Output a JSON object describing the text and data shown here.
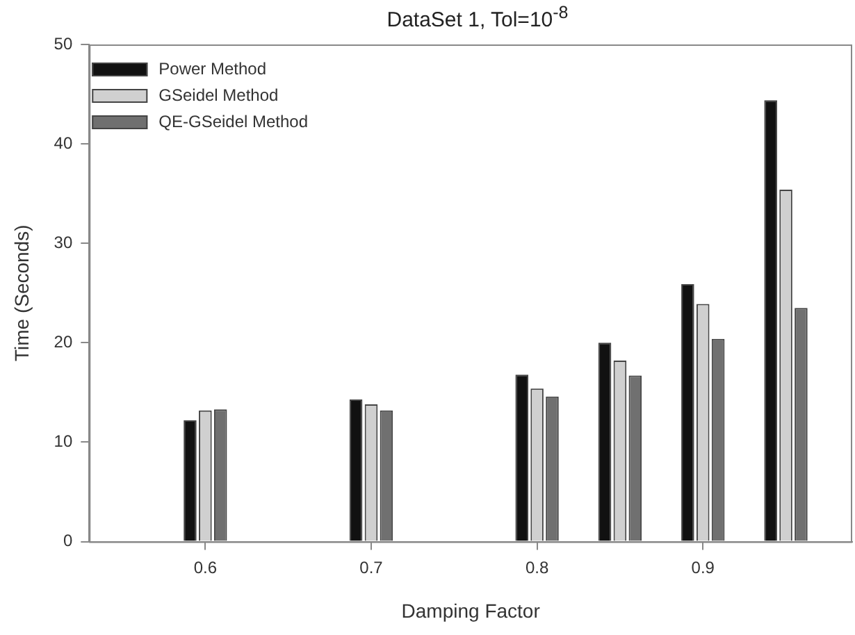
{
  "chart_data": {
    "type": "bar",
    "title": "DataSet 1, Tol=10$^{-8}$",
    "xlabel": "Damping Factor",
    "ylabel": "Time (Seconds)",
    "x": [
      0.6,
      0.7,
      0.8,
      0.85,
      0.9,
      0.95
    ],
    "series": [
      {
        "name": "Power Method",
        "color": "#111111",
        "values": [
          12.2,
          14.3,
          16.8,
          20.0,
          25.9,
          44.4
        ]
      },
      {
        "name": "GSeidel Method",
        "color": "#d0d0d0",
        "values": [
          13.2,
          13.8,
          15.4,
          18.2,
          23.9,
          35.4
        ]
      },
      {
        "name": "QE-GSeidel Method",
        "color": "#707070",
        "values": [
          13.3,
          13.2,
          14.6,
          16.7,
          20.4,
          23.5
        ]
      }
    ],
    "xlim": [
      0.53,
      0.99
    ],
    "xticks": [
      0.6,
      0.7,
      0.8,
      0.9
    ],
    "ylim": [
      0,
      50
    ],
    "yticks": [
      0,
      10,
      20,
      30,
      40,
      50
    ],
    "grid": false,
    "legend": "top left"
  }
}
